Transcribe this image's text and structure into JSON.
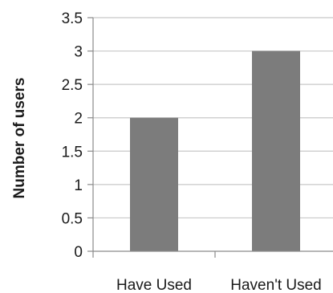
{
  "chart_data": {
    "type": "bar",
    "title": "",
    "xlabel": "",
    "ylabel": "Number of users",
    "categories": [
      "Have Used",
      "Haven't Used"
    ],
    "values": [
      2,
      3
    ],
    "ylim": [
      0,
      3.5
    ],
    "yticks": [
      0,
      0.5,
      1,
      1.5,
      2,
      2.5,
      3,
      3.5
    ],
    "ytick_labels": [
      "0",
      "0.5",
      "1",
      "1.5",
      "2",
      "2.5",
      "3",
      "3.5"
    ],
    "grid": "horizontal",
    "legend": "none",
    "colors": {
      "bar": "#7c7c7c",
      "grid": "#c8c8c8",
      "axis": "#8a8a8a",
      "text": "#1a1a1a"
    }
  }
}
